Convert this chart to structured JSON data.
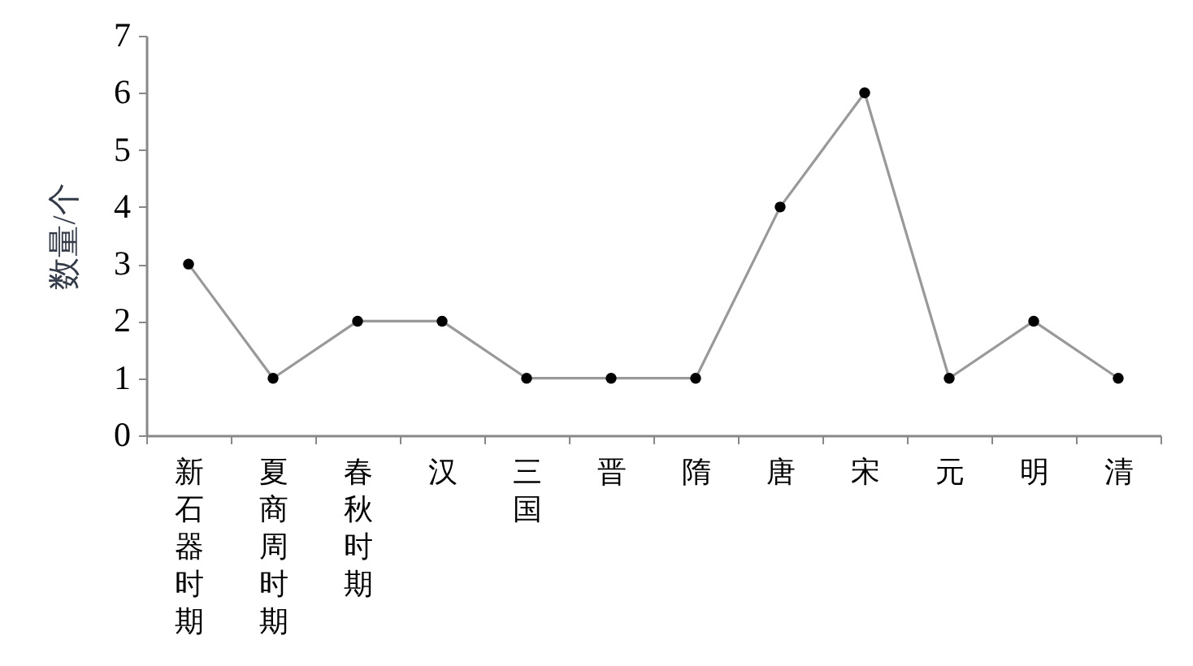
{
  "chart_data": {
    "type": "line",
    "ylabel": "数量/个",
    "categories": [
      "新石器时期",
      "夏商周时期",
      "春秋时期",
      "汉",
      "三国",
      "晋",
      "隋",
      "唐",
      "宋",
      "元",
      "明",
      "清"
    ],
    "series": [
      {
        "color": "#999999",
        "values": [
          3,
          1,
          2,
          2,
          1,
          1,
          1,
          4,
          6,
          1,
          2,
          1
        ]
      }
    ],
    "ylim": [
      0,
      7
    ],
    "yticks": [
      0,
      1,
      2,
      3,
      4,
      5,
      6,
      7
    ],
    "grid": false,
    "marker": "circle",
    "line_style": "solid"
  }
}
